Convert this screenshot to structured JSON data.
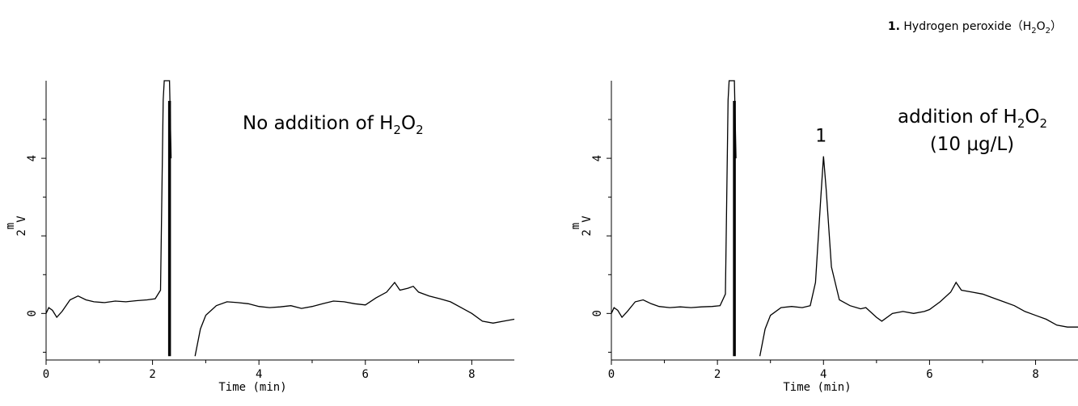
{
  "legend": {
    "number": "1.",
    "compound": "Hydrogen peroxide",
    "formula": {
      "base": "H",
      "sub1": "2",
      "mid": "O",
      "sub2": "2"
    }
  },
  "chart_data": [
    {
      "type": "line",
      "annotation": {
        "prefix": "No addition of ",
        "formula": {
          "base": "H",
          "sub1": "2",
          "mid": "O",
          "sub2": "2"
        }
      },
      "xlabel": "Time (min)",
      "ylabel": {
        "top": "m",
        "mid": "2",
        "bottom": "V"
      },
      "xlim": [
        0,
        8.8
      ],
      "ylim": [
        -1.2,
        6
      ],
      "xticks": [
        "0",
        "2",
        "4",
        "6",
        "8"
      ],
      "yticks": [
        "0",
        "4"
      ],
      "series": [
        {
          "segments": [
            [
              [
                0,
                0
              ],
              [
                0.05,
                0.15
              ],
              [
                0.12,
                0.08
              ],
              [
                0.2,
                -0.1
              ],
              [
                0.3,
                0.05
              ],
              [
                0.45,
                0.35
              ],
              [
                0.6,
                0.45
              ],
              [
                0.75,
                0.35
              ],
              [
                0.9,
                0.3
              ],
              [
                1.1,
                0.28
              ],
              [
                1.3,
                0.32
              ],
              [
                1.5,
                0.3
              ],
              [
                1.7,
                0.33
              ],
              [
                1.9,
                0.35
              ],
              [
                2.05,
                0.38
              ],
              [
                2.15,
                0.6
              ],
              [
                2.2,
                5.5
              ],
              [
                2.22,
                6
              ],
              [
                2.32,
                6
              ],
              [
                2.35,
                4
              ]
            ],
            [
              [
                2.8,
                -1.1
              ],
              [
                2.9,
                -0.4
              ],
              [
                3.0,
                -0.05
              ],
              [
                3.2,
                0.2
              ],
              [
                3.4,
                0.3
              ],
              [
                3.6,
                0.28
              ],
              [
                3.8,
                0.25
              ],
              [
                4.0,
                0.18
              ],
              [
                4.2,
                0.15
              ],
              [
                4.4,
                0.17
              ],
              [
                4.6,
                0.2
              ],
              [
                4.8,
                0.13
              ],
              [
                5.0,
                0.18
              ],
              [
                5.2,
                0.25
              ],
              [
                5.4,
                0.32
              ],
              [
                5.6,
                0.3
              ],
              [
                5.8,
                0.25
              ],
              [
                6.0,
                0.22
              ],
              [
                6.2,
                0.4
              ],
              [
                6.4,
                0.55
              ],
              [
                6.55,
                0.8
              ],
              [
                6.65,
                0.6
              ],
              [
                6.8,
                0.65
              ],
              [
                6.9,
                0.7
              ],
              [
                7.0,
                0.55
              ],
              [
                7.2,
                0.45
              ],
              [
                7.4,
                0.38
              ],
              [
                7.6,
                0.3
              ],
              [
                7.8,
                0.15
              ],
              [
                8.0,
                0.0
              ],
              [
                8.2,
                -0.2
              ],
              [
                8.4,
                -0.25
              ],
              [
                8.6,
                -0.2
              ],
              [
                8.8,
                -0.15
              ]
            ]
          ]
        }
      ]
    },
    {
      "type": "line",
      "annotation": {
        "prefix": "addition of ",
        "formula": {
          "base": "H",
          "sub1": "2",
          "mid": "O",
          "sub2": "2"
        },
        "line2": "(10 μg/L)"
      },
      "peak_label": "1",
      "peak_x": 4.0,
      "peak_y": 4.05,
      "xlabel": "Time (min)",
      "ylabel": {
        "top": "m",
        "mid": "2",
        "bottom": "V"
      },
      "xlim": [
        0,
        8.8
      ],
      "ylim": [
        -1.2,
        6
      ],
      "xticks": [
        "0",
        "2",
        "4",
        "6",
        "8"
      ],
      "yticks": [
        "0",
        "4"
      ],
      "series": [
        {
          "segments": [
            [
              [
                0,
                0
              ],
              [
                0.05,
                0.15
              ],
              [
                0.12,
                0.08
              ],
              [
                0.2,
                -0.1
              ],
              [
                0.3,
                0.05
              ],
              [
                0.45,
                0.3
              ],
              [
                0.6,
                0.35
              ],
              [
                0.75,
                0.25
              ],
              [
                0.9,
                0.18
              ],
              [
                1.1,
                0.15
              ],
              [
                1.3,
                0.17
              ],
              [
                1.5,
                0.15
              ],
              [
                1.7,
                0.17
              ],
              [
                1.9,
                0.18
              ],
              [
                2.05,
                0.2
              ],
              [
                2.15,
                0.5
              ],
              [
                2.2,
                5.5
              ],
              [
                2.22,
                6
              ],
              [
                2.32,
                6
              ],
              [
                2.35,
                4
              ]
            ],
            [
              [
                2.8,
                -1.1
              ],
              [
                2.9,
                -0.4
              ],
              [
                3.0,
                -0.05
              ],
              [
                3.2,
                0.15
              ],
              [
                3.4,
                0.18
              ],
              [
                3.6,
                0.15
              ],
              [
                3.75,
                0.2
              ],
              [
                3.85,
                0.8
              ],
              [
                3.95,
                3.0
              ],
              [
                4.0,
                4.05
              ],
              [
                4.05,
                3.2
              ],
              [
                4.15,
                1.2
              ],
              [
                4.3,
                0.35
              ],
              [
                4.5,
                0.2
              ],
              [
                4.7,
                0.12
              ],
              [
                4.8,
                0.15
              ],
              [
                5.0,
                -0.1
              ],
              [
                5.1,
                -0.2
              ],
              [
                5.3,
                0.0
              ],
              [
                5.5,
                0.05
              ],
              [
                5.7,
                0.0
              ],
              [
                5.9,
                0.05
              ],
              [
                6.0,
                0.1
              ],
              [
                6.2,
                0.3
              ],
              [
                6.4,
                0.55
              ],
              [
                6.5,
                0.8
              ],
              [
                6.6,
                0.6
              ],
              [
                6.8,
                0.55
              ],
              [
                7.0,
                0.5
              ],
              [
                7.2,
                0.4
              ],
              [
                7.4,
                0.3
              ],
              [
                7.6,
                0.2
              ],
              [
                7.8,
                0.05
              ],
              [
                8.0,
                -0.05
              ],
              [
                8.2,
                -0.15
              ],
              [
                8.4,
                -0.3
              ],
              [
                8.6,
                -0.35
              ],
              [
                8.8,
                -0.35
              ]
            ]
          ]
        }
      ]
    }
  ]
}
